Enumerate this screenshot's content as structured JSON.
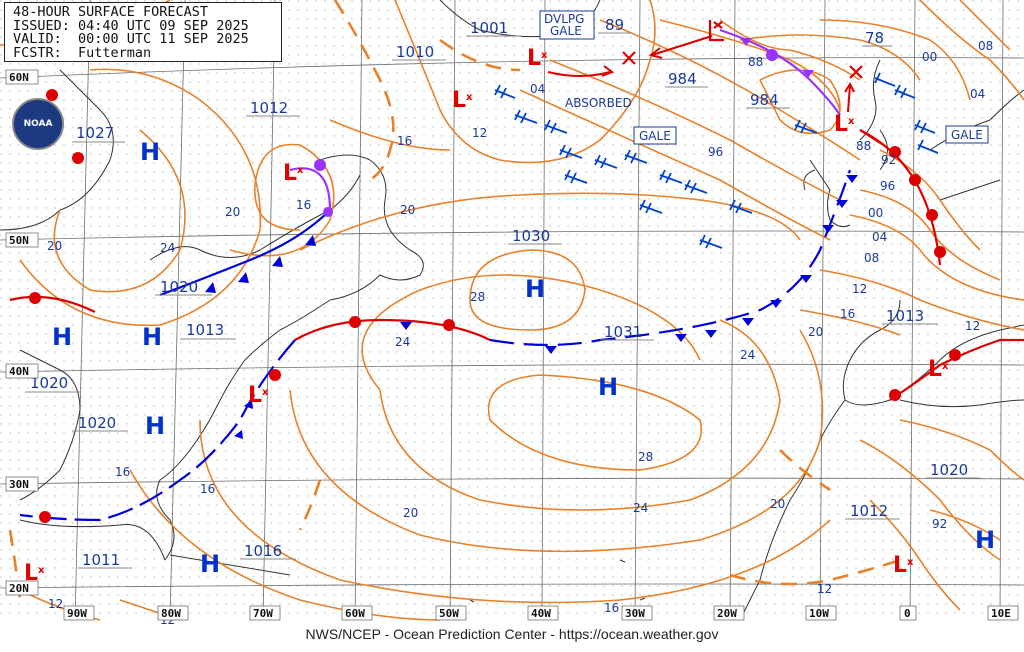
{
  "header": {
    "title": "48-HOUR SURFACE FORECAST",
    "issued": "ISSUED: 04:40 UTC 09 SEP 2025",
    "valid": "VALID:  00:00 UTC 11 SEP 2025",
    "forecaster": "FCSTR:  Futterman"
  },
  "logo": {
    "text": "NOAA"
  },
  "credit": "NWS/NCEP - Ocean Prediction Center - https://ocean.weather.gov",
  "colors": {
    "isobar": "#e8812a",
    "low": "#e00000",
    "high": "#0033cc",
    "cold_front": "#0000dd",
    "warm_front": "#dd0000",
    "occluded": "#9933ff",
    "label": "#1a3a99",
    "grid": "#555555"
  },
  "lat_labels": [
    "60N",
    "50N",
    "40N",
    "30N",
    "20N"
  ],
  "lon_labels": [
    "90W",
    "80W",
    "70W",
    "60W",
    "50W",
    "40W",
    "30W",
    "20W",
    "10W",
    "0",
    "10E"
  ],
  "high_centers": [
    {
      "label": "H",
      "pressure": "1027"
    },
    {
      "label": "H",
      "pressure": "1020"
    },
    {
      "label": "H",
      "pressure": "1013"
    },
    {
      "label": "H",
      "pressure": "1020"
    },
    {
      "label": "H",
      "pressure": "1020"
    },
    {
      "label": "H",
      "pressure": "1011"
    },
    {
      "label": "H",
      "pressure": "1030"
    },
    {
      "label": "H",
      "pressure": "1031"
    },
    {
      "label": "H",
      "pressure": "1012"
    }
  ],
  "pressure_boxes": [
    "1010",
    "1001",
    "89",
    "1012",
    "984",
    "984",
    "78",
    "1016",
    "1013",
    "1020"
  ],
  "warnings": [
    "DVLPG\nGALE",
    "GALE",
    "GALE"
  ],
  "annotations": [
    "ABSORBED"
  ],
  "isobar_labels": [
    "04",
    "12",
    "16",
    "20",
    "20",
    "24",
    "16",
    "20",
    "24",
    "28",
    "28",
    "24",
    "20",
    "16",
    "12",
    "24",
    "20",
    "16",
    "12",
    "16",
    "12",
    "96",
    "88",
    "92",
    "88",
    "96",
    "00",
    "04",
    "08",
    "12",
    "16",
    "20",
    "00",
    "04",
    "08",
    "12",
    "92"
  ]
}
